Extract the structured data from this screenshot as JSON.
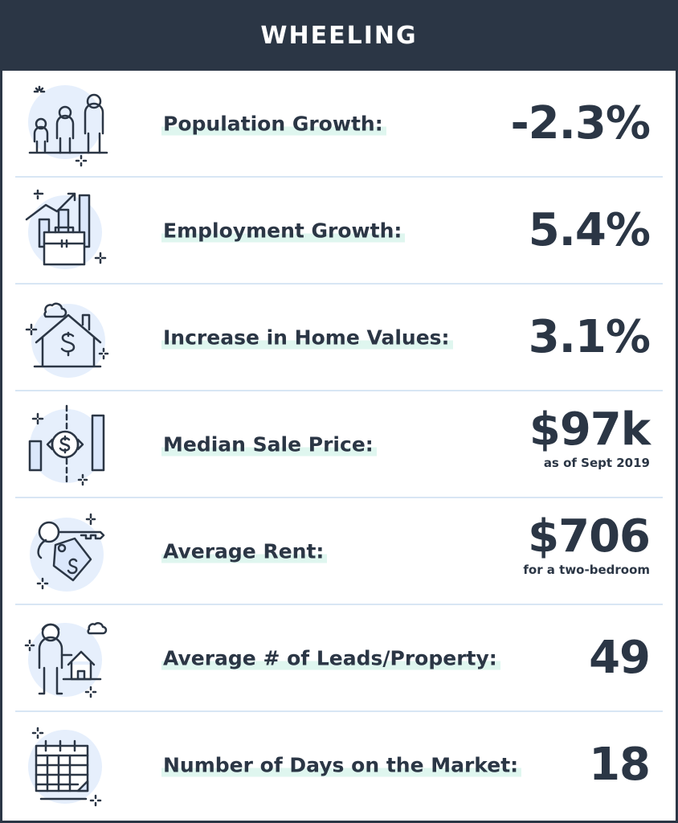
{
  "title": "WHEELING",
  "rows": [
    {
      "label": "Population Growth:",
      "value": "-2.3%",
      "icon": "people-icon"
    },
    {
      "label": "Employment Growth:",
      "value": "5.4%",
      "icon": "briefcase-chart-icon"
    },
    {
      "label": "Increase in Home Values:",
      "value": "3.1%",
      "icon": "house-dollar-icon"
    },
    {
      "label": "Median Sale Price:",
      "value": "$97k",
      "note": "as  of Sept 2019",
      "icon": "price-bars-icon"
    },
    {
      "label": "Average Rent:",
      "value": "$706",
      "note": "for a two-bedroom",
      "icon": "key-tag-icon"
    },
    {
      "label": "Average # of Leads/Property:",
      "value": "49",
      "icon": "person-house-icon"
    },
    {
      "label": "Number of Days on the Market:",
      "value": "18",
      "icon": "calendar-icon"
    }
  ],
  "colors": {
    "dark": "#2b3645",
    "accent_bg": "#e6effc",
    "highlight": "#dff6ef",
    "divider": "#d8e6f4"
  }
}
